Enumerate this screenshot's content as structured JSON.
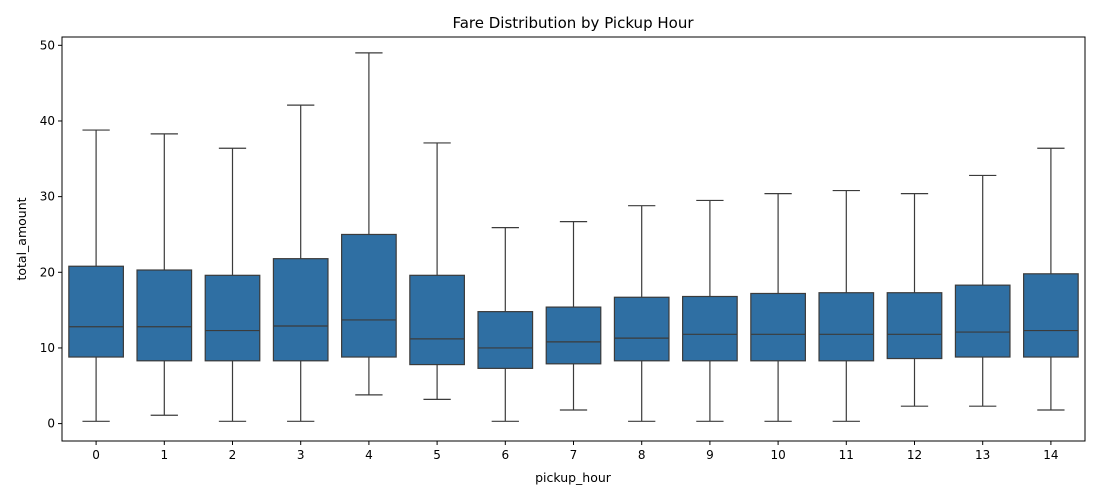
{
  "chart_data": {
    "type": "box",
    "title": "Fare Distribution by Pickup Hour",
    "xlabel": "pickup_hour",
    "ylabel": "total_amount",
    "ylim": [
      -2.3,
      51.1
    ],
    "y_ticks": [
      0,
      10,
      20,
      30,
      40,
      50
    ],
    "grid": false,
    "box_color": "#2f6fa3",
    "line_color": "#3b3b3b",
    "categories": [
      "0",
      "1",
      "2",
      "3",
      "4",
      "5",
      "6",
      "7",
      "8",
      "9",
      "10",
      "11",
      "12",
      "13",
      "14"
    ],
    "boxes": [
      {
        "category": "0",
        "whisker_low": 0.3,
        "q1": 8.8,
        "median": 12.8,
        "q3": 20.8,
        "whisker_high": 38.8
      },
      {
        "category": "1",
        "whisker_low": 1.1,
        "q1": 8.3,
        "median": 12.8,
        "q3": 20.3,
        "whisker_high": 38.3
      },
      {
        "category": "2",
        "whisker_low": 0.3,
        "q1": 8.3,
        "median": 12.3,
        "q3": 19.6,
        "whisker_high": 36.4
      },
      {
        "category": "3",
        "whisker_low": 0.3,
        "q1": 8.3,
        "median": 12.9,
        "q3": 21.8,
        "whisker_high": 42.1
      },
      {
        "category": "4",
        "whisker_low": 3.8,
        "q1": 8.8,
        "median": 13.7,
        "q3": 25.0,
        "whisker_high": 49.0
      },
      {
        "category": "5",
        "whisker_low": 3.2,
        "q1": 7.8,
        "median": 11.2,
        "q3": 19.6,
        "whisker_high": 37.1
      },
      {
        "category": "6",
        "whisker_low": 0.3,
        "q1": 7.3,
        "median": 10.0,
        "q3": 14.8,
        "whisker_high": 25.9
      },
      {
        "category": "7",
        "whisker_low": 1.8,
        "q1": 7.9,
        "median": 10.8,
        "q3": 15.4,
        "whisker_high": 26.7
      },
      {
        "category": "8",
        "whisker_low": 0.3,
        "q1": 8.3,
        "median": 11.3,
        "q3": 16.7,
        "whisker_high": 28.8
      },
      {
        "category": "9",
        "whisker_low": 0.3,
        "q1": 8.3,
        "median": 11.8,
        "q3": 16.8,
        "whisker_high": 29.5
      },
      {
        "category": "10",
        "whisker_low": 0.3,
        "q1": 8.3,
        "median": 11.8,
        "q3": 17.2,
        "whisker_high": 30.4
      },
      {
        "category": "11",
        "whisker_low": 0.3,
        "q1": 8.3,
        "median": 11.8,
        "q3": 17.3,
        "whisker_high": 30.8
      },
      {
        "category": "12",
        "whisker_low": 2.3,
        "q1": 8.6,
        "median": 11.8,
        "q3": 17.3,
        "whisker_high": 30.4
      },
      {
        "category": "13",
        "whisker_low": 2.3,
        "q1": 8.8,
        "median": 12.1,
        "q3": 18.3,
        "whisker_high": 32.8
      },
      {
        "category": "14",
        "whisker_low": 1.8,
        "q1": 8.8,
        "median": 12.3,
        "q3": 19.8,
        "whisker_high": 36.4
      }
    ]
  }
}
